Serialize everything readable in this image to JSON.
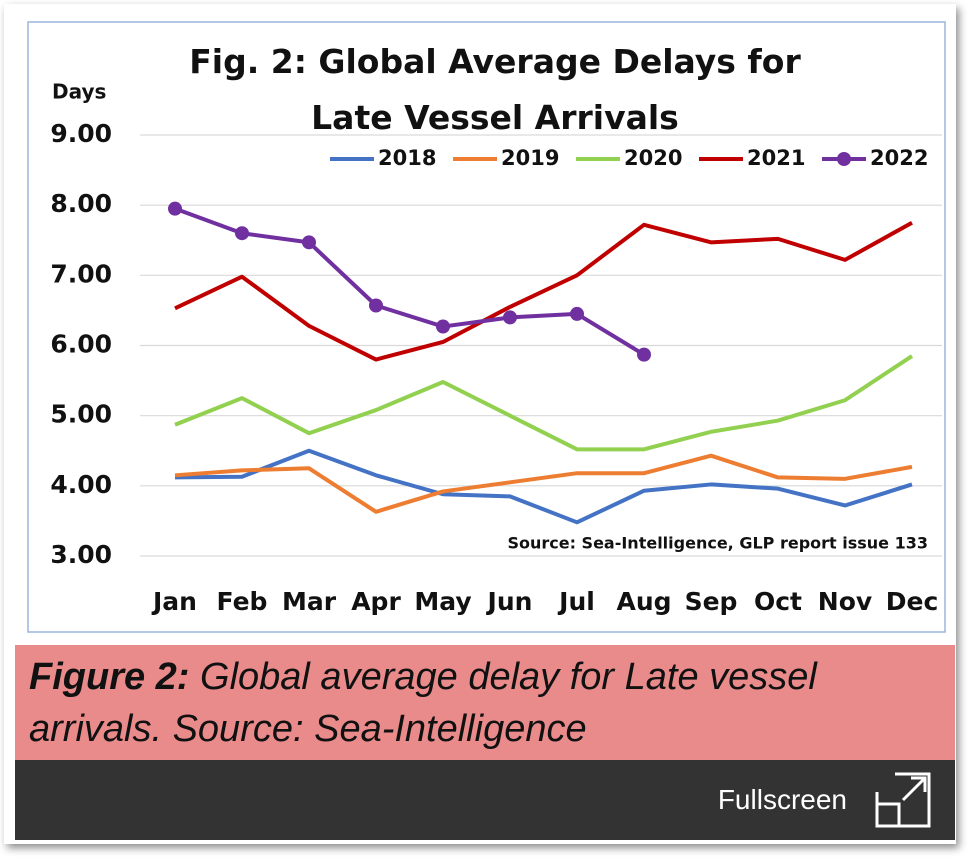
{
  "chart_data": {
    "type": "line",
    "title": "Fig. 2: Global Average Delays for Late Vessel Arrivals",
    "y_label": "Days",
    "annotation": "Source: Sea-Intelligence, GLP report issue 133",
    "categories": [
      "Jan",
      "Feb",
      "Mar",
      "Apr",
      "May",
      "Jun",
      "Jul",
      "Aug",
      "Sep",
      "Oct",
      "Nov",
      "Dec"
    ],
    "series": [
      {
        "name": "2018",
        "color": "#4472c4",
        "values": [
          4.12,
          4.13,
          4.5,
          4.15,
          3.88,
          3.85,
          3.48,
          3.93,
          4.02,
          3.96,
          3.72,
          4.02
        ]
      },
      {
        "name": "2019",
        "color": "#ed7d31",
        "values": [
          4.15,
          4.22,
          4.25,
          3.63,
          3.92,
          4.05,
          4.18,
          4.18,
          4.43,
          4.12,
          4.1,
          4.27
        ]
      },
      {
        "name": "2020",
        "color": "#92d050",
        "values": [
          4.87,
          5.25,
          4.75,
          5.08,
          5.48,
          5.0,
          4.52,
          4.52,
          4.77,
          4.93,
          5.22,
          5.85
        ]
      },
      {
        "name": "2021",
        "color": "#c00000",
        "values": [
          6.53,
          6.98,
          6.28,
          5.8,
          6.05,
          6.55,
          7.0,
          7.72,
          7.47,
          7.52,
          7.22,
          7.75
        ]
      },
      {
        "name": "2022",
        "color": "#7030a0",
        "markers": true,
        "values": [
          7.95,
          7.6,
          7.47,
          6.57,
          6.27,
          6.4,
          6.45,
          5.87,
          null,
          null,
          null,
          null
        ]
      }
    ],
    "ylim": [
      3,
      9
    ],
    "yticks": [
      {
        "value": 3,
        "label": "3.00"
      },
      {
        "value": 4,
        "label": "4.00"
      },
      {
        "value": 5,
        "label": "5.00"
      },
      {
        "value": 6,
        "label": "6.00"
      },
      {
        "value": 7,
        "label": "7.00"
      },
      {
        "value": 8,
        "label": "8.00"
      },
      {
        "value": 9,
        "label": "9.00"
      }
    ],
    "grid": true,
    "legend": "top"
  },
  "caption": {
    "label": "Figure 2:",
    "text": "Global average delay for Late vessel arrivals. Source: Sea-Intelligence"
  },
  "button": {
    "label": "Fullscreen"
  }
}
